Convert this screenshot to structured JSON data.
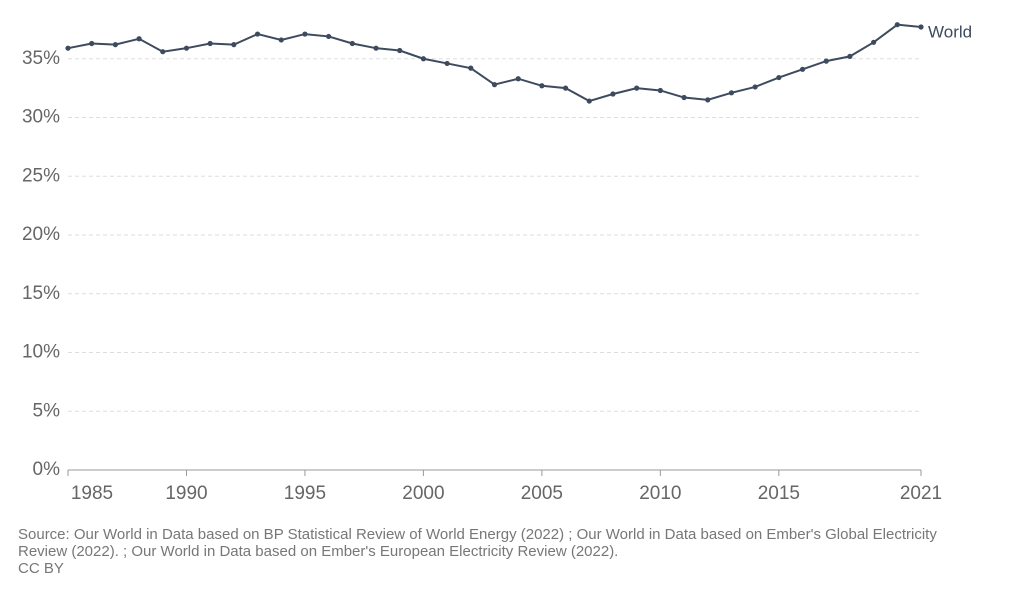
{
  "chart_data": {
    "type": "line",
    "x": [
      1985,
      1986,
      1987,
      1988,
      1989,
      1990,
      1991,
      1992,
      1993,
      1994,
      1995,
      1996,
      1997,
      1998,
      1999,
      2000,
      2001,
      2002,
      2003,
      2004,
      2005,
      2006,
      2007,
      2008,
      2009,
      2010,
      2011,
      2012,
      2013,
      2014,
      2015,
      2016,
      2017,
      2018,
      2019,
      2020,
      2021
    ],
    "series": [
      {
        "name": "World",
        "color": "#3e4a5e",
        "values": [
          35.9,
          36.3,
          36.2,
          36.7,
          35.6,
          35.9,
          36.3,
          36.2,
          37.1,
          36.6,
          37.1,
          36.9,
          36.3,
          35.9,
          35.7,
          35.0,
          34.6,
          34.2,
          32.8,
          33.3,
          32.7,
          32.5,
          31.4,
          32.0,
          32.5,
          32.3,
          31.7,
          31.5,
          32.1,
          32.6,
          33.4,
          34.1,
          34.8,
          35.2,
          36.4,
          37.9,
          37.7
        ]
      }
    ],
    "xlim": [
      1985,
      2021
    ],
    "xticks": [
      1985,
      1990,
      1995,
      2000,
      2005,
      2010,
      2015,
      2021
    ],
    "ylim": [
      0,
      40
    ],
    "yticks": [
      {
        "value": 0,
        "label": "0%"
      },
      {
        "value": 5,
        "label": "5%"
      },
      {
        "value": 10,
        "label": "10%"
      },
      {
        "value": 15,
        "label": "15%"
      },
      {
        "value": 20,
        "label": "20%"
      },
      {
        "value": 25,
        "label": "25%"
      },
      {
        "value": 30,
        "label": "30%"
      },
      {
        "value": 35,
        "label": "35%"
      }
    ],
    "grid": true,
    "source": "Source: Our World in Data based on BP Statistical Review of World Energy (2022) ; Our World in Data based on Ember's Global Electricity Review (2022). ; Our World in Data based on Ember's European Electricity Review (2022).",
    "license": "CC BY"
  }
}
